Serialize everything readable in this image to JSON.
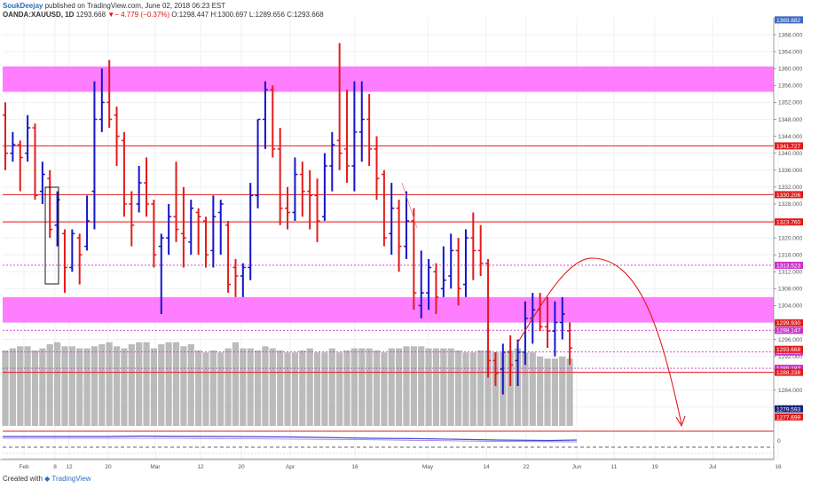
{
  "header": {
    "author": "SoukDeejay",
    "published": "published on TradingView.com, June 02, 2018 06:23 EST",
    "symbol": "OANDA:XAUUSD, 1D",
    "last": "1293.668",
    "change": "− 4.779 (−0.37%)",
    "ohlc": "O:1298.447 H:1300.697 L:1289.656 C:1293.668"
  },
  "footer": {
    "created_with": "Created with",
    "brand": "TradingView"
  },
  "colors": {
    "up": "#1515c8",
    "down": "#e31b1b",
    "zone": "#ff66ff",
    "level": "#e31b1b",
    "dotted": "#cc33cc",
    "volume": "#b4b4b4"
  },
  "chart_data": {
    "type": "bar",
    "ylim": [
      1276,
      1372
    ],
    "y_ticks": [
      1368,
      1364,
      1360,
      1356,
      1352,
      1348,
      1344,
      1340,
      1336,
      1332,
      1328,
      1324,
      1320,
      1316,
      1312,
      1308,
      1304,
      1300,
      1296,
      1292,
      1288,
      1284,
      1280
    ],
    "x_labels": [
      "Feb",
      "8",
      "12",
      "20",
      "Mar",
      "12",
      "20",
      "Apr",
      "16",
      "May",
      "14",
      "22",
      "Jun",
      "11",
      "19",
      "Jul",
      "16"
    ],
    "supply_zones": [
      [
        1354.5,
        1360.5
      ],
      [
        1300,
        1306
      ]
    ],
    "levels": [
      {
        "value": 1341.727,
        "label": "1341.727",
        "style": "solid"
      },
      {
        "value": 1330.206,
        "label": "1330.206",
        "style": "solid"
      },
      {
        "value": 1323.76,
        "label": "1323.760",
        "style": "solid"
      },
      {
        "value": 1313.523,
        "label": "1313.523",
        "style": "dotted"
      },
      {
        "value": 1298.147,
        "label": "1298.147",
        "style": "dotted"
      },
      {
        "value": 1293.035,
        "label": "1293.035",
        "style": "dotted"
      },
      {
        "value": 1289.187,
        "label": "1289.187",
        "style": "dotted"
      },
      {
        "value": 1288.238,
        "label": "1288.238",
        "style": "solid"
      }
    ],
    "price_tags": [
      {
        "value": 1299.93,
        "label": "1299.930",
        "color": "#e31b1b"
      },
      {
        "value": 1293.668,
        "label": "1293.668",
        "color": "#e31b1b"
      },
      {
        "value": 1279.593,
        "label": "1279.593",
        "color": "#1a237e"
      },
      {
        "value": 1277.699,
        "label": "1277.699",
        "color": "#e31b1b"
      }
    ],
    "top_tag": {
      "value": 1371.5,
      "label": "1369.882",
      "color": "#3d6bc1"
    },
    "bars": [
      [
        1349,
        1352,
        1336,
        1340
      ],
      [
        1340,
        1345,
        1338,
        1342
      ],
      [
        1342,
        1343,
        1331,
        1339
      ],
      [
        1340,
        1349,
        1338,
        1346
      ],
      [
        1346,
        1347,
        1329,
        1330
      ],
      [
        1331,
        1338,
        1328,
        1335
      ],
      [
        1334,
        1336,
        1320,
        1322
      ],
      [
        1323,
        1331,
        1318,
        1329
      ],
      [
        1321,
        1322,
        1307,
        1313
      ],
      [
        1313,
        1322,
        1312,
        1321
      ],
      [
        1320,
        1321,
        1309,
        1316
      ],
      [
        1318,
        1330,
        1317,
        1324
      ],
      [
        1331,
        1357,
        1322,
        1348
      ],
      [
        1348,
        1360,
        1345,
        1352
      ],
      [
        1352,
        1362,
        1346,
        1348
      ],
      [
        1349,
        1351,
        1337,
        1344
      ],
      [
        1343,
        1345,
        1325,
        1328
      ],
      [
        1328,
        1331,
        1318,
        1323
      ],
      [
        1328,
        1337,
        1326,
        1333
      ],
      [
        1333,
        1339,
        1325,
        1328
      ],
      [
        1328,
        1329,
        1313,
        1316
      ],
      [
        1318,
        1321,
        1302,
        1320
      ],
      [
        1320,
        1328,
        1316,
        1325
      ],
      [
        1325,
        1338,
        1319,
        1322
      ],
      [
        1321,
        1332,
        1313,
        1320
      ],
      [
        1319,
        1329,
        1316,
        1327
      ],
      [
        1326,
        1327,
        1316,
        1325
      ],
      [
        1324,
        1325,
        1313,
        1316
      ],
      [
        1317,
        1330,
        1313,
        1325
      ],
      [
        1326,
        1329,
        1316,
        1328
      ],
      [
        1323,
        1324,
        1307,
        1309
      ],
      [
        1313,
        1315,
        1306,
        1311
      ],
      [
        1311,
        1314,
        1306,
        1313
      ],
      [
        1313,
        1333,
        1310,
        1330
      ],
      [
        1330,
        1348,
        1327,
        1348
      ],
      [
        1348,
        1357,
        1341,
        1355
      ],
      [
        1355,
        1356,
        1339,
        1341
      ],
      [
        1341,
        1346,
        1323,
        1327
      ],
      [
        1327,
        1332,
        1322,
        1326
      ],
      [
        1326,
        1339,
        1324,
        1335
      ],
      [
        1335,
        1338,
        1325,
        1331
      ],
      [
        1331,
        1336,
        1322,
        1330
      ],
      [
        1330,
        1334,
        1319,
        1324
      ],
      [
        1325,
        1340,
        1324,
        1337
      ],
      [
        1337,
        1345,
        1331,
        1342
      ],
      [
        1343,
        1366,
        1336,
        1340
      ],
      [
        1341,
        1355,
        1333,
        1337
      ],
      [
        1337,
        1357,
        1331,
        1345
      ],
      [
        1345,
        1357,
        1338,
        1348
      ],
      [
        1348,
        1354,
        1337,
        1341
      ],
      [
        1341,
        1344,
        1329,
        1334
      ],
      [
        1335,
        1336,
        1318,
        1320
      ],
      [
        1321,
        1333,
        1316,
        1327
      ],
      [
        1327,
        1329,
        1312,
        1318
      ],
      [
        1318,
        1331,
        1315,
        1324
      ],
      [
        1324,
        1327,
        1303,
        1307
      ],
      [
        1304,
        1317,
        1301,
        1307
      ],
      [
        1307,
        1315,
        1303,
        1313
      ],
      [
        1312,
        1314,
        1302,
        1306
      ],
      [
        1308,
        1318,
        1306,
        1310
      ],
      [
        1311,
        1321,
        1308,
        1317
      ],
      [
        1317,
        1320,
        1304,
        1308
      ],
      [
        1309,
        1322,
        1306,
        1320
      ],
      [
        1320,
        1326,
        1310,
        1317
      ],
      [
        1317,
        1323,
        1311,
        1314
      ],
      [
        1314,
        1315,
        1287,
        1291
      ],
      [
        1291,
        1293,
        1285,
        1288
      ],
      [
        1289,
        1295,
        1283,
        1293
      ],
      [
        1293,
        1297,
        1285,
        1290
      ],
      [
        1291,
        1296,
        1285,
        1293
      ],
      [
        1293,
        1305,
        1290,
        1301
      ],
      [
        1301,
        1307,
        1295,
        1303
      ],
      [
        1303,
        1307,
        1298,
        1299
      ],
      [
        1299,
        1306,
        1294,
        1298
      ],
      [
        1298,
        1305,
        1292,
        1300
      ],
      [
        1300,
        1306,
        1296,
        1302
      ],
      [
        1298,
        1300,
        1290,
        1294
      ]
    ],
    "volume": [
      37,
      38,
      39,
      39,
      37,
      38,
      40,
      41,
      39,
      39,
      38,
      38,
      39,
      40,
      41,
      39,
      38,
      40,
      41,
      41,
      38,
      40,
      41,
      41,
      39,
      40,
      37,
      36,
      37,
      36,
      38,
      41,
      38,
      38,
      37,
      39,
      38,
      37,
      36,
      36,
      37,
      38,
      36,
      36,
      38,
      36,
      37,
      38,
      38,
      38,
      37,
      36,
      38,
      38,
      39,
      39,
      39,
      38,
      38,
      38,
      38,
      37,
      36,
      36,
      37,
      37,
      36,
      36,
      37,
      38,
      36,
      36,
      34,
      33,
      33,
      34,
      33
    ],
    "volume_scale": {
      "min": 0,
      "max": 100
    }
  }
}
